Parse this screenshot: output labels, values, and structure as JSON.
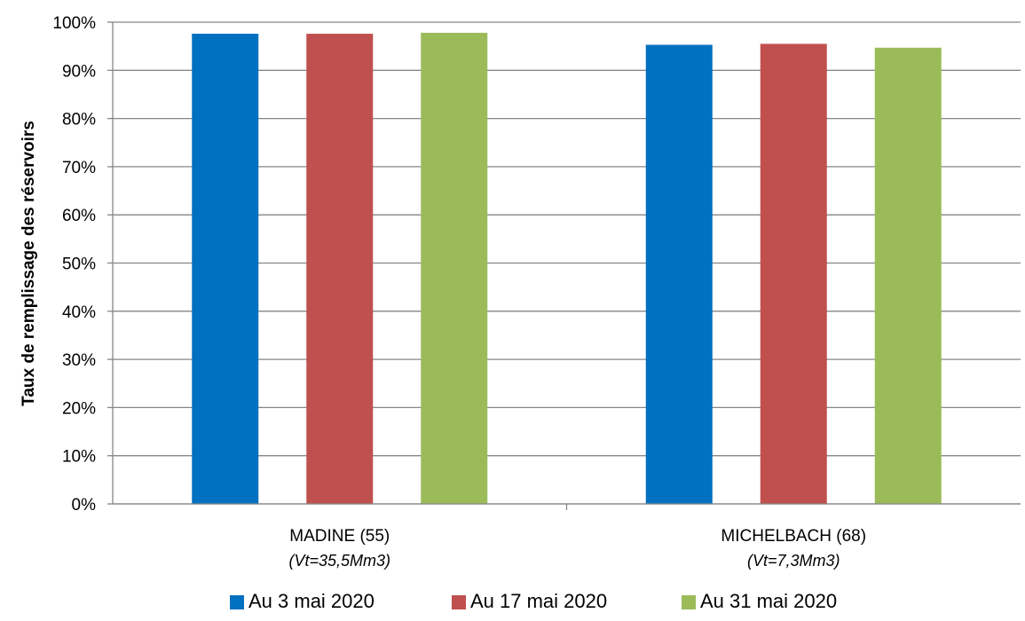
{
  "chart_data": {
    "type": "bar",
    "categories": [
      "MADINE (55)",
      "MICHELBACH (68)"
    ],
    "category_subtitles": [
      "(Vt=35,5Mm3)",
      "(Vt=7,3Mm3)"
    ],
    "series": [
      {
        "name": "Au 3 mai 2020",
        "color": "#0070C0",
        "values": [
          97.6,
          95.3
        ]
      },
      {
        "name": "Au 17 mai 2020",
        "color": "#C0504D",
        "values": [
          97.6,
          95.5
        ]
      },
      {
        "name": "Au 31 mai 2020",
        "color": "#9BBB59",
        "values": [
          97.8,
          94.7
        ]
      }
    ],
    "ylabel": "Taux de remplissage des réservoirs",
    "xlabel": "",
    "ylim": [
      0,
      100
    ],
    "ytick_step": 10,
    "ytick_suffix": "%",
    "grid": true,
    "legend_position": "bottom",
    "gridline_color": "#868686",
    "axis_color": "#868686"
  }
}
